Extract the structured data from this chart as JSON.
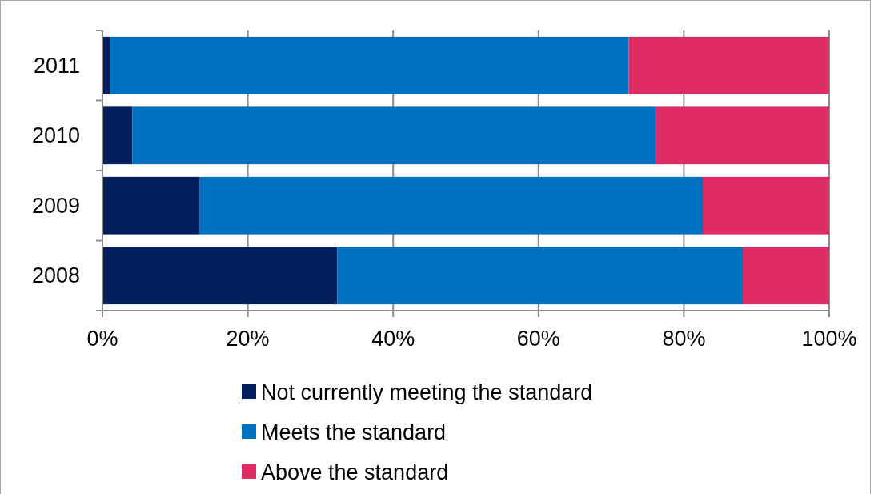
{
  "chart_data": {
    "type": "bar",
    "orientation": "horizontal",
    "stacked": true,
    "categories": [
      "2011",
      "2010",
      "2009",
      "2008"
    ],
    "series": [
      {
        "name": "Not currently meeting the standard",
        "color": "#001f5c",
        "values": [
          1.0,
          4.1,
          13.4,
          32.3
        ]
      },
      {
        "name": "Meets the standard",
        "color": "#0070c0",
        "values": [
          71.4,
          72.1,
          69.2,
          55.8
        ]
      },
      {
        "name": "Above the standard",
        "color": "#e02c64",
        "values": [
          27.6,
          23.8,
          17.4,
          11.9
        ]
      }
    ],
    "xlim": [
      0,
      100
    ],
    "xticks": [
      {
        "value": 0,
        "label": "0%"
      },
      {
        "value": 20,
        "label": "20%"
      },
      {
        "value": 40,
        "label": "40%"
      },
      {
        "value": 60,
        "label": "60%"
      },
      {
        "value": 80,
        "label": "80%"
      },
      {
        "value": 100,
        "label": "100%"
      }
    ],
    "grid": "x",
    "legend": "bottom"
  }
}
